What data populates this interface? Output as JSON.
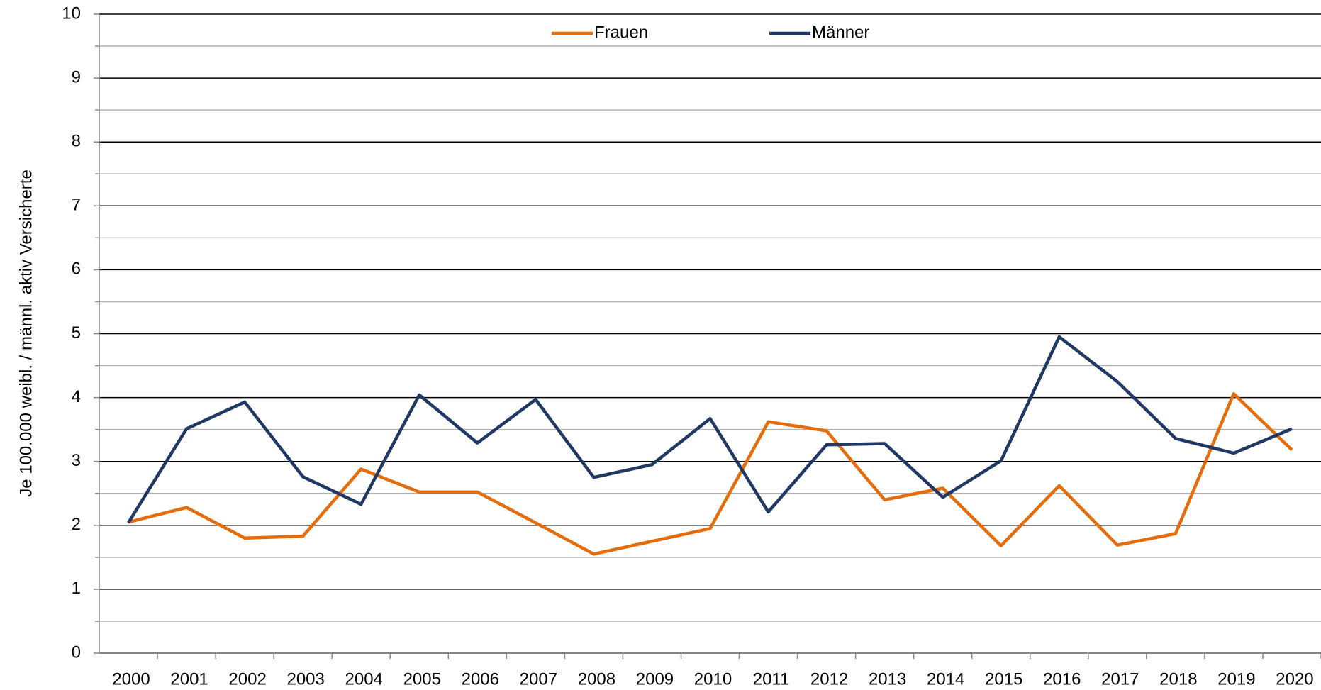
{
  "chart_data": {
    "type": "line",
    "y_label": "Je 100.000 weibl. / männl. aktiv Versicherte",
    "categories": [
      "2000",
      "2001",
      "2002",
      "2003",
      "2004",
      "2005",
      "2006",
      "2007",
      "2008",
      "2009",
      "2010",
      "2011",
      "2012",
      "2013",
      "2014",
      "2015",
      "2016",
      "2017",
      "2018",
      "2019",
      "2020"
    ],
    "series": [
      {
        "name": "Frauen",
        "color": "#e46c0a",
        "values": [
          2.05,
          2.28,
          1.8,
          1.83,
          2.88,
          2.52,
          2.52,
          2.04,
          1.55,
          1.75,
          1.95,
          3.62,
          3.48,
          2.4,
          2.58,
          1.68,
          2.62,
          1.69,
          1.87,
          4.06,
          3.18
        ]
      },
      {
        "name": "Männer",
        "color": "#1f3864",
        "values": [
          2.04,
          3.51,
          3.93,
          2.76,
          2.33,
          4.04,
          3.29,
          3.97,
          2.75,
          2.95,
          3.67,
          2.21,
          3.26,
          3.28,
          2.44,
          3.01,
          4.95,
          4.25,
          3.36,
          3.13,
          3.51
        ]
      }
    ],
    "ylim": [
      0,
      10
    ],
    "yticks": [
      0,
      1,
      2,
      3,
      4,
      5,
      6,
      7,
      8,
      9,
      10
    ],
    "grid": true,
    "legend": "top"
  }
}
